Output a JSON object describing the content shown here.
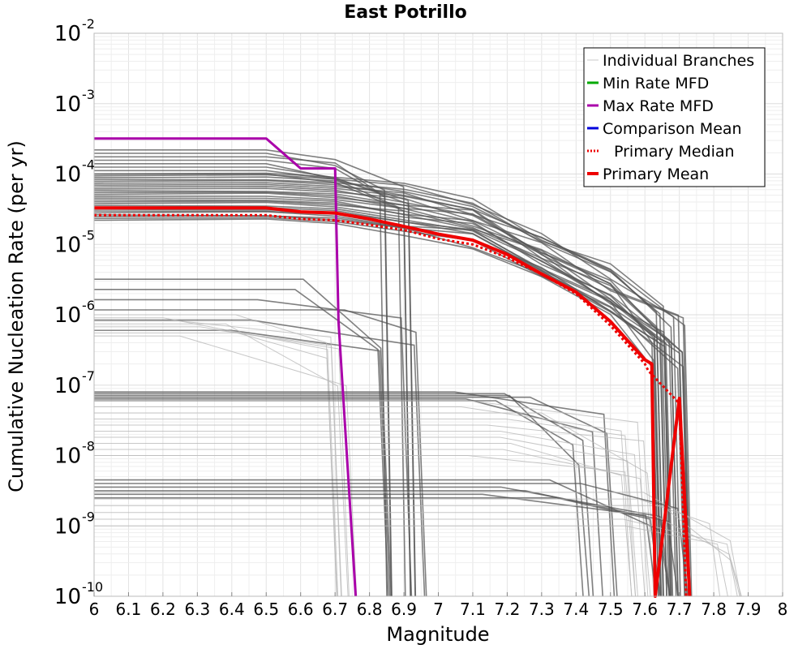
{
  "chart_data": {
    "type": "line",
    "title": "East Potrillo",
    "xlabel": "Magnitude",
    "ylabel": "Cumulative Nucleation Rate (per yr)",
    "xlim": [
      6,
      8
    ],
    "ylim": [
      1e-10,
      0.01
    ],
    "yscale": "log",
    "grid": true,
    "legend_position": "top-right",
    "x_ticks": [
      "6",
      "6.1",
      "6.2",
      "6.3",
      "6.4",
      "6.5",
      "6.6",
      "6.7",
      "6.8",
      "6.9",
      "7",
      "7.1",
      "7.2",
      "7.3",
      "7.4",
      "7.5",
      "7.6",
      "7.7",
      "7.8",
      "7.9",
      "8"
    ],
    "y_ticks": [
      {
        "base": "10",
        "exp": "-2",
        "value": 0.01
      },
      {
        "base": "10",
        "exp": "-3",
        "value": 0.001
      },
      {
        "base": "10",
        "exp": "-4",
        "value": 0.0001
      },
      {
        "base": "10",
        "exp": "-5",
        "value": 1e-05
      },
      {
        "base": "10",
        "exp": "-6",
        "value": 1e-06
      },
      {
        "base": "10",
        "exp": "-7",
        "value": 1e-07
      },
      {
        "base": "10",
        "exp": "-8",
        "value": 1e-08
      },
      {
        "base": "10",
        "exp": "-9",
        "value": 1e-09
      },
      {
        "base": "10",
        "exp": "-10",
        "value": 1e-10
      }
    ],
    "legend": [
      {
        "label": "Individual Branches",
        "color": "#c8c8c8",
        "style": "solid",
        "width": 1
      },
      {
        "label": "Min Rate MFD",
        "color": "#00aa00",
        "style": "solid",
        "width": 3
      },
      {
        "label": "Max Rate MFD",
        "color": "#aa00aa",
        "style": "solid",
        "width": 3
      },
      {
        "label": "Comparison Mean",
        "color": "#0000dd",
        "style": "solid",
        "width": 3
      },
      {
        "label": "Primary Median",
        "color": "#ee0000",
        "style": "dotted",
        "width": 3
      },
      {
        "label": "Primary Mean",
        "color": "#ee0000",
        "style": "solid",
        "width": 4
      }
    ],
    "series": [
      {
        "name": "Max Rate MFD",
        "color": "#aa00aa",
        "width": 3,
        "x": [
          6.0,
          6.5,
          6.6,
          6.7,
          6.71,
          6.76
        ],
        "y": [
          0.00032,
          0.00032,
          0.00012,
          0.00012,
          8e-07,
          1e-10
        ]
      },
      {
        "name": "Primary Median",
        "color": "#ee0000",
        "width": 3,
        "dash": "3,3",
        "x": [
          6.0,
          6.5,
          6.6,
          6.7,
          6.8,
          6.9,
          7.0,
          7.1,
          7.2,
          7.3,
          7.4,
          7.5,
          7.6,
          7.61,
          7.7,
          7.72
        ],
        "y": [
          2.6e-05,
          2.6e-05,
          2.3e-05,
          2.2e-05,
          1.9e-05,
          1.6e-05,
          1.2e-05,
          1e-05,
          6.5e-06,
          3.8e-06,
          2e-06,
          7e-07,
          2e-07,
          1.6e-07,
          5.5e-08,
          1e-10
        ]
      },
      {
        "name": "Primary Mean",
        "color": "#ee0000",
        "width": 4,
        "x": [
          6.0,
          6.5,
          6.6,
          6.7,
          6.8,
          6.9,
          7.0,
          7.1,
          7.2,
          7.3,
          7.4,
          7.5,
          7.6,
          7.62,
          7.63,
          7.7,
          7.73
        ],
        "y": [
          3.3e-05,
          3.3e-05,
          2.9e-05,
          2.8e-05,
          2.3e-05,
          1.8e-05,
          1.4e-05,
          1.15e-05,
          7.2e-06,
          3.8e-06,
          2.1e-06,
          8e-07,
          2.3e-07,
          2e-07,
          1e-10,
          6.5e-08,
          1e-10
        ]
      }
    ],
    "branch_families": [
      {
        "count": 26,
        "y_min": 2.2e-05,
        "y_max": 0.0001,
        "drop_mag": 7.72,
        "style": "dense-upper"
      },
      {
        "count": 8,
        "y_min": 0.0001,
        "y_max": 0.00022,
        "drop_mag": 6.85,
        "style": "dense-top"
      },
      {
        "count": 6,
        "y_min": 6e-07,
        "y_max": 3.2e-06,
        "drop_mag": 6.88,
        "style": "dense-mid"
      },
      {
        "count": 8,
        "y_min": 5e-07,
        "y_max": 1e-06,
        "drop_mag": 6.72,
        "style": "light-mid"
      },
      {
        "count": 6,
        "y_min": 6e-08,
        "y_max": 8e-08,
        "drop_mag": 7.43,
        "style": "dense-low"
      },
      {
        "count": 10,
        "y_min": 1e-08,
        "y_max": 6e-08,
        "drop_mag": 7.55,
        "style": "light-low"
      },
      {
        "count": 6,
        "y_min": 2.5e-09,
        "y_max": 4.5e-09,
        "drop_mag": 7.65,
        "style": "dense-bottom"
      },
      {
        "count": 6,
        "y_min": 1e-09,
        "y_max": 3e-09,
        "drop_mag": 7.8,
        "style": "light-bottom"
      }
    ]
  }
}
